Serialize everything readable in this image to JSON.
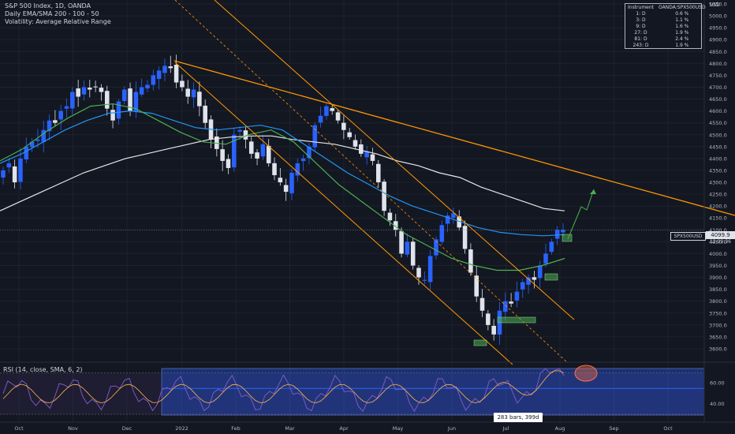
{
  "legend": {
    "line1": "S&P 500 Index, 1D, OANDA",
    "line2": "Daily EMA/SMA 200 - 100 - 50",
    "line3": "Volatility: Average Relative Range"
  },
  "rsi_label": "RSI (14, close, SMA, 6, 2)",
  "currency": "USD",
  "info_table": {
    "header": [
      "Instrument",
      "OANDA:SPX500USD"
    ],
    "rows": [
      [
        "1: D",
        "0.6 %"
      ],
      [
        "3: D",
        "1.1 %"
      ],
      [
        "9: D",
        "1.6 %"
      ],
      [
        "27: D",
        "1.9 %"
      ],
      [
        "81: D",
        "2.4 %"
      ],
      [
        "243: D",
        "1.9 %"
      ]
    ]
  },
  "symbol_tag": "SPX500USD",
  "last_price": "4099.9",
  "countdown": "12:09:36",
  "bars_tag": "283 bars, 399d",
  "colors": {
    "up": "#2962ff",
    "down": "#e0e3eb",
    "ema200": "#e6e6e6",
    "ema100": "#2196f3",
    "ema50": "#4caf50",
    "trend": "#ff9800",
    "rsi": "#7e57c2",
    "zone": "#2962ff"
  },
  "chart_data": {
    "type": "line",
    "price_axis": {
      "ticks": [
        3600,
        3650,
        3700,
        3750,
        3800,
        3850,
        3900,
        3950,
        4000,
        4050,
        4100,
        4150,
        4200,
        4250,
        4300,
        4350,
        4400,
        4450,
        4500,
        4550,
        4600,
        4650,
        4700,
        4750,
        4800,
        4850,
        4900,
        4950,
        5000,
        5050
      ],
      "tick_labels": [
        "3600.0",
        "3650.0",
        "3700.0",
        "3750.0",
        "3800.0",
        "3850.0",
        "3900.0",
        "3950.0",
        "4000.0",
        "4050.0",
        "4100.0",
        "4150.0",
        "4200.0",
        "4250.0",
        "4300.0",
        "4350.0",
        "4400.0",
        "4450.0",
        "4500.0",
        "4550.0",
        "4600.0",
        "4650.0",
        "4700.0",
        "4750.0",
        "4800.0",
        "4850.0",
        "4900.0",
        "4950.0",
        "5000.0",
        "5050.0"
      ],
      "range": [
        3570,
        5080
      ]
    },
    "time_axis": {
      "labels": [
        "Oct",
        "Nov",
        "Dec",
        "2022",
        "Feb",
        "Mar",
        "Apr",
        "May",
        "Jun",
        "Jul",
        "Aug",
        "Sep",
        "Oct"
      ]
    },
    "rsi_axis": {
      "ticks": [
        40,
        60
      ],
      "tick_labels": [
        "40.00",
        "60.00"
      ]
    },
    "series": [
      {
        "name": "Close",
        "values": [
          4350,
          4380,
          4300,
          4400,
          4450,
          4470,
          4480,
          4520,
          4560,
          4550,
          4600,
          4620,
          4680,
          4660,
          4700,
          4690,
          4700,
          4680,
          4610,
          4560,
          4640,
          4690,
          4600,
          4680,
          4700,
          4710,
          4750,
          4770,
          4790,
          4780,
          4720,
          4700,
          4660,
          4690,
          4620,
          4550,
          4480,
          4440,
          4390,
          4360,
          4500,
          4520,
          4480,
          4420,
          4400,
          4460,
          4380,
          4330,
          4300,
          4260,
          4340,
          4380,
          4400,
          4450,
          4540,
          4580,
          4620,
          4600,
          4560,
          4520,
          4490,
          4450,
          4420,
          4430,
          4390,
          4300,
          4180,
          4140,
          4100,
          4000,
          4050,
          3950,
          3900,
          3890,
          3990,
          4060,
          4120,
          4160,
          4170,
          4110,
          4020,
          3920,
          3820,
          3760,
          3700,
          3660,
          3760,
          3800,
          3790,
          3840,
          3880,
          3900,
          3890,
          3950,
          4000,
          4050,
          4100,
          4100
        ]
      },
      {
        "name": "EMA 200",
        "values": [
          4180,
          4220,
          4260,
          4300,
          4340,
          4370,
          4400,
          4420,
          4440,
          4460,
          4480,
          4490,
          4495,
          4495,
          4480,
          4470,
          4460,
          4440,
          4420,
          4390,
          4370,
          4340,
          4320,
          4280,
          4250,
          4220,
          4190,
          4180
        ]
      },
      {
        "name": "EMA 100",
        "values": [
          4380,
          4420,
          4470,
          4520,
          4560,
          4590,
          4600,
          4590,
          4560,
          4530,
          4520,
          4530,
          4540,
          4520,
          4460,
          4400,
          4340,
          4290,
          4240,
          4200,
          4170,
          4140,
          4110,
          4090,
          4080,
          4075,
          4080
        ]
      },
      {
        "name": "EMA 50",
        "values": [
          4390,
          4440,
          4510,
          4570,
          4620,
          4630,
          4610,
          4560,
          4510,
          4470,
          4460,
          4500,
          4520,
          4470,
          4380,
          4290,
          4220,
          4150,
          4080,
          4030,
          3980,
          3950,
          3930,
          3930,
          3950,
          3980
        ]
      }
    ]
  }
}
